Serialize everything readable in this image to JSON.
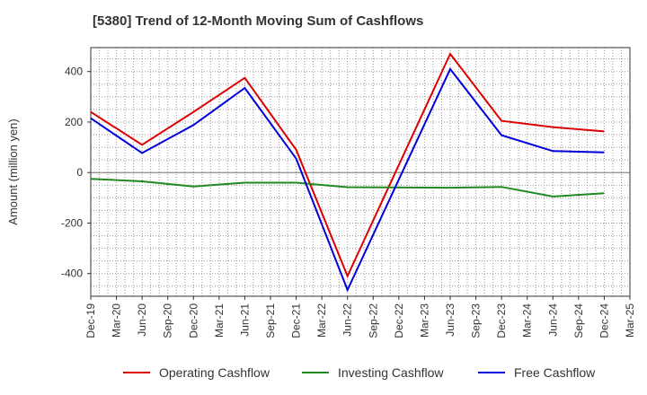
{
  "chart_data": {
    "type": "line",
    "title": "[5380]  Trend of 12-Month Moving Sum of Cashflows",
    "ylabel": "Amount (million yen)",
    "xlabel": "",
    "ylim": [
      -490,
      495
    ],
    "yticks": [
      -400,
      -200,
      0,
      200,
      400
    ],
    "grid": true,
    "legend_position": "bottom",
    "categories": [
      "Dec-19",
      "Mar-20",
      "Jun-20",
      "Sep-20",
      "Dec-20",
      "Mar-21",
      "Jun-21",
      "Sep-21",
      "Dec-21",
      "Mar-22",
      "Jun-22",
      "Sep-22",
      "Dec-22",
      "Mar-23",
      "Jun-23",
      "Sep-23",
      "Dec-23",
      "Mar-24",
      "Jun-24",
      "Sep-24",
      "Dec-24",
      "Mar-25"
    ],
    "series": [
      {
        "name": "Operating Cashflow",
        "color": "#dd0000",
        "points": [
          [
            "Dec-19",
            240
          ],
          [
            "Jun-20",
            110
          ],
          [
            "Dec-20",
            240
          ],
          [
            "Jun-21",
            375
          ],
          [
            "Dec-21",
            90
          ],
          [
            "Jun-22",
            -410
          ],
          [
            "Jun-23",
            470
          ],
          [
            "Dec-23",
            205
          ],
          [
            "Jun-24",
            180
          ],
          [
            "Dec-24",
            163
          ]
        ]
      },
      {
        "name": "Investing Cashflow",
        "color": "#228822",
        "points": [
          [
            "Dec-19",
            -25
          ],
          [
            "Jun-20",
            -35
          ],
          [
            "Dec-20",
            -55
          ],
          [
            "Jun-21",
            -40
          ],
          [
            "Dec-21",
            -40
          ],
          [
            "Jun-22",
            -58
          ],
          [
            "Jun-23",
            -60
          ],
          [
            "Dec-23",
            -57
          ],
          [
            "Jun-24",
            -95
          ],
          [
            "Dec-24",
            -82
          ]
        ]
      },
      {
        "name": "Free Cashflow",
        "color": "#0000dd",
        "points": [
          [
            "Dec-19",
            215
          ],
          [
            "Jun-20",
            77
          ],
          [
            "Dec-20",
            188
          ],
          [
            "Jun-21",
            335
          ],
          [
            "Dec-21",
            55
          ],
          [
            "Jun-22",
            -465
          ],
          [
            "Jun-23",
            410
          ],
          [
            "Dec-23",
            148
          ],
          [
            "Jun-24",
            85
          ],
          [
            "Dec-24",
            80
          ]
        ]
      }
    ]
  }
}
